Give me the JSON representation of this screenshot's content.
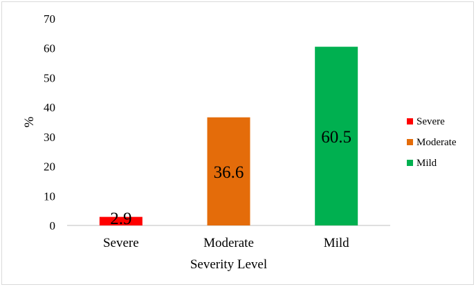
{
  "chart_data": {
    "type": "bar",
    "categories": [
      "Severe",
      "Moderate",
      "Mild"
    ],
    "values": [
      2.9,
      36.6,
      60.5
    ],
    "data_labels": [
      "2.9",
      "36.6",
      "60.5"
    ],
    "colors": [
      "#ff0000",
      "#e46c0a",
      "#00b050"
    ],
    "title": "",
    "xlabel": "Severity Level",
    "ylabel": "%",
    "ylim": [
      0,
      70
    ],
    "yticks": [
      0,
      10,
      20,
      30,
      40,
      50,
      60,
      70
    ],
    "ytick_labels": [
      "0",
      "10",
      "20",
      "30",
      "40",
      "50",
      "60",
      "70"
    ],
    "grid": false,
    "legend": {
      "position": "right",
      "entries": [
        "Severe",
        "Moderate",
        "Mild"
      ]
    }
  }
}
